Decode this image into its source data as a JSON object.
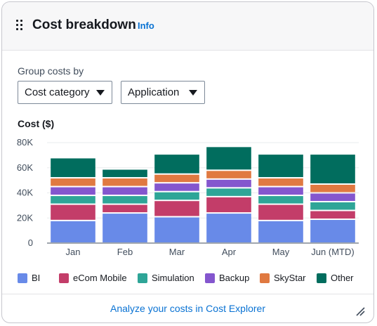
{
  "header": {
    "title": "Cost breakdown",
    "info_label": "Info"
  },
  "controls": {
    "group_label": "Group costs by",
    "select_primary": "Cost category",
    "select_secondary": "Application"
  },
  "chart_label": "Cost ($)",
  "colors": {
    "BI": "#688ae8",
    "eCom Mobile": "#c33d69",
    "Simulation": "#2ea597",
    "Backup": "#8456ce",
    "SkyStar": "#e07941",
    "Other": "#016d5e",
    "link": "#0972d3"
  },
  "chart_data": {
    "type": "bar",
    "stacked": true,
    "title": "",
    "ylabel": "Cost ($)",
    "ylim": [
      0,
      80000
    ],
    "yticks": [
      0,
      20000,
      40000,
      60000,
      80000
    ],
    "ytick_labels": [
      "0",
      "20K",
      "40K",
      "60K",
      "80K"
    ],
    "grid": true,
    "legend_position": "bottom",
    "categories": [
      "Jan",
      "Feb",
      "Mar",
      "Apr",
      "May",
      "Jun (MTD)"
    ],
    "series": [
      {
        "name": "BI",
        "values": [
          18000,
          24000,
          21000,
          24000,
          18000,
          19000
        ]
      },
      {
        "name": "eCom Mobile",
        "values": [
          13000,
          7000,
          13000,
          13000,
          13000,
          7000
        ]
      },
      {
        "name": "Simulation",
        "values": [
          7000,
          7000,
          7000,
          7000,
          7000,
          7000
        ]
      },
      {
        "name": "Backup",
        "values": [
          7000,
          7000,
          7000,
          7000,
          7000,
          7000
        ]
      },
      {
        "name": "SkyStar",
        "values": [
          7000,
          7000,
          7000,
          7000,
          7000,
          7000
        ]
      },
      {
        "name": "Other",
        "values": [
          16000,
          7000,
          16000,
          19000,
          19000,
          24000
        ]
      }
    ]
  },
  "footer": {
    "link_label": "Analyze your costs in Cost Explorer"
  },
  "icons": {
    "drag": "drag-handle-icon",
    "resize": "resize-handle-icon",
    "select_caret": "caret-down-icon"
  }
}
